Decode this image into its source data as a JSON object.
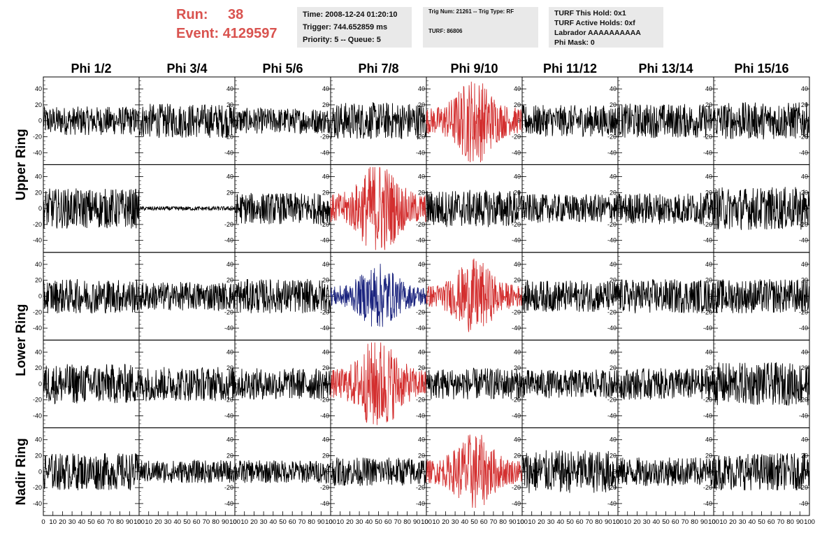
{
  "header": {
    "run_label": "Run:",
    "run_value": "38",
    "event_label": "Event:",
    "event_value": "4129597",
    "info_time": "Time: 2008-12-24 01:20:10",
    "info_trigger": "Trigger: 744.652859 ms",
    "info_priority": "Priority: 5 -- Queue: 5",
    "trig_num": "Trig Num: 21261 -- Trig Type: RF",
    "turf_id": "TURF: 86806",
    "turf_hold": "TURF This Hold: 0x1",
    "turf_active": "TURF Active Holds: 0xf",
    "labrador": "Labrador AAAAAAAAAA",
    "phi_mask": "Phi Mask: 0"
  },
  "chart_data": {
    "type": "line",
    "columns": [
      "Phi 1/2",
      "Phi 3/4",
      "Phi 5/6",
      "Phi 7/8",
      "Phi 9/10",
      "Phi 11/12",
      "Phi 13/14",
      "Phi 15/16"
    ],
    "ring_labels": [
      {
        "text": "Upper Ring",
        "rows": [
          0,
          1
        ]
      },
      {
        "text": "Lower Ring",
        "rows": [
          2,
          3
        ]
      },
      {
        "text": "Nadir Ring",
        "rows": [
          4,
          4
        ]
      }
    ],
    "xlim": [
      0,
      100
    ],
    "ylim": [
      -55,
      55
    ],
    "x_ticks": [
      0,
      10,
      20,
      30,
      40,
      50,
      60,
      70,
      80,
      90,
      100
    ],
    "x_tick_labels": [
      "0",
      "10",
      "20",
      "30",
      "40",
      "50",
      "60",
      "70",
      "80",
      "90",
      "100"
    ],
    "y_ticks": [
      -40,
      -20,
      0,
      20,
      40
    ],
    "colors": {
      "normal": "#000000",
      "triggered": "#d32f2f",
      "blue": "#1a237e"
    },
    "panels": [
      [
        {
          "amp": 10,
          "color": "normal"
        },
        {
          "amp": 12,
          "color": "normal"
        },
        {
          "amp": 9,
          "color": "normal"
        },
        {
          "amp": 13,
          "color": "normal"
        },
        {
          "amp": 20,
          "color": "triggered",
          "burst": true
        },
        {
          "amp": 11,
          "color": "normal"
        },
        {
          "amp": 12,
          "color": "normal"
        },
        {
          "amp": 13,
          "color": "normal"
        }
      ],
      [
        {
          "amp": 14,
          "color": "normal"
        },
        {
          "amp": 1.5,
          "color": "normal"
        },
        {
          "amp": 11,
          "color": "normal"
        },
        {
          "amp": 22,
          "color": "triggered",
          "burst": true
        },
        {
          "amp": 13,
          "color": "normal"
        },
        {
          "amp": 10,
          "color": "normal"
        },
        {
          "amp": 11,
          "color": "normal"
        },
        {
          "amp": 15,
          "color": "normal"
        }
      ],
      [
        {
          "amp": 12,
          "color": "normal"
        },
        {
          "amp": 10,
          "color": "normal"
        },
        {
          "amp": 12,
          "color": "normal"
        },
        {
          "amp": 15,
          "color": "blue",
          "burst": true
        },
        {
          "amp": 17,
          "color": "triggered",
          "burst": true
        },
        {
          "amp": 11,
          "color": "normal"
        },
        {
          "amp": 12,
          "color": "normal"
        },
        {
          "amp": 12,
          "color": "normal"
        }
      ],
      [
        {
          "amp": 14,
          "color": "normal"
        },
        {
          "amp": 12,
          "color": "normal"
        },
        {
          "amp": 11,
          "color": "normal"
        },
        {
          "amp": 22,
          "color": "triggered",
          "burst": true
        },
        {
          "amp": 11,
          "color": "normal"
        },
        {
          "amp": 10,
          "color": "normal"
        },
        {
          "amp": 11,
          "color": "normal"
        },
        {
          "amp": 15,
          "color": "normal"
        }
      ],
      [
        {
          "amp": 13,
          "color": "normal"
        },
        {
          "amp": 8,
          "color": "normal"
        },
        {
          "amp": 8,
          "color": "normal"
        },
        {
          "amp": 10,
          "color": "normal"
        },
        {
          "amp": 18,
          "color": "triggered",
          "burst": true
        },
        {
          "amp": 15,
          "color": "normal"
        },
        {
          "amp": 10,
          "color": "normal"
        },
        {
          "amp": 13,
          "color": "normal"
        }
      ]
    ]
  }
}
